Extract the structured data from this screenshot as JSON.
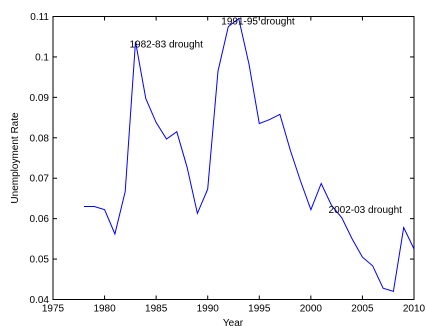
{
  "chart_data": {
    "type": "line",
    "xlabel": "Year",
    "ylabel": "Unemployment Rate",
    "xlim": [
      1975,
      2010
    ],
    "ylim": [
      0.04,
      0.11
    ],
    "xticks": [
      1975,
      1980,
      1985,
      1990,
      1995,
      2000,
      2005,
      2010
    ],
    "yticks": [
      0.04,
      0.05,
      0.06,
      0.07,
      0.08,
      0.09,
      0.1,
      0.11
    ],
    "xtick_labels": [
      "1975",
      "1980",
      "1985",
      "1990",
      "1995",
      "2000",
      "2005",
      "2010"
    ],
    "ytick_labels": [
      "0.04",
      "0.05",
      "0.06",
      "0.07",
      "0.08",
      "0.09",
      "0.1",
      "0.11"
    ],
    "grid": false,
    "series_color": "#0000ff",
    "series": [
      {
        "x": [
          1978,
          1979,
          1980,
          1981,
          1982,
          1983,
          1984,
          1985,
          1986,
          1987,
          1988,
          1989,
          1990,
          1991,
          1992,
          1993,
          1994,
          1995,
          1996,
          1997,
          1998,
          1999,
          2000,
          2001,
          2002,
          2003,
          2004,
          2005,
          2006,
          2007,
          2008,
          2009,
          2010
        ],
        "y": [
          0.063,
          0.063,
          0.0622,
          0.0562,
          0.0667,
          0.1038,
          0.0897,
          0.0838,
          0.0797,
          0.0815,
          0.0727,
          0.0613,
          0.0673,
          0.0965,
          0.1075,
          0.1095,
          0.0982,
          0.0835,
          0.0845,
          0.0858,
          0.077,
          0.0693,
          0.0622,
          0.0687,
          0.0633,
          0.0602,
          0.055,
          0.0505,
          0.0483,
          0.0428,
          0.042,
          0.0578,
          0.0525
        ]
      }
    ],
    "annotations": [
      {
        "text": "1982-83 drought",
        "x": 1982.9,
        "y": 0.1038
      },
      {
        "text": "1991-95 drought",
        "x": 1991.8,
        "y": 0.1095
      },
      {
        "text": "2002-03 drought",
        "x": 2002.2,
        "y": 0.0629
      }
    ]
  }
}
